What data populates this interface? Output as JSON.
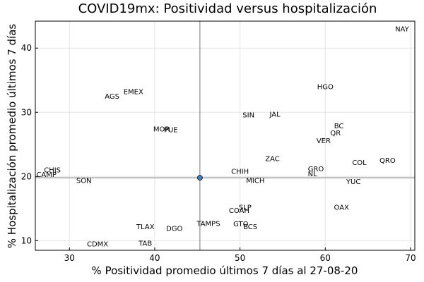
{
  "chart_data": {
    "type": "scatter",
    "title": "COVID19mx: Positividad versus hospitalización",
    "xlabel": "% Positividad promedio últimos 7 días al 27-08-20",
    "ylabel": "% Hospitalización promedio últimos 7 días",
    "xlim": [
      26.0,
      70.5
    ],
    "ylim": [
      8.5,
      44.2
    ],
    "xticks": [
      30,
      40,
      50,
      60,
      70
    ],
    "yticks": [
      10,
      20,
      30,
      40
    ],
    "grid": true,
    "reference_lines": {
      "x": 45.3,
      "y": 19.8
    },
    "marker": {
      "x": 45.3,
      "y": 19.8,
      "color": "#3a82c4"
    },
    "points": [
      {
        "label": "NAY",
        "x": 69.0,
        "y": 43.0
      },
      {
        "label": "HGO",
        "x": 60.0,
        "y": 34.0
      },
      {
        "label": "EMEX",
        "x": 37.5,
        "y": 33.2
      },
      {
        "label": "AGS",
        "x": 35.0,
        "y": 32.5
      },
      {
        "label": "SIN",
        "x": 51.0,
        "y": 29.6
      },
      {
        "label": "JAL",
        "x": 54.1,
        "y": 29.7
      },
      {
        "label": "BC",
        "x": 61.6,
        "y": 27.9
      },
      {
        "label": "QR",
        "x": 61.2,
        "y": 26.8
      },
      {
        "label": "MOR",
        "x": 40.8,
        "y": 27.4
      },
      {
        "label": "PUE",
        "x": 41.9,
        "y": 27.3
      },
      {
        "label": "VER",
        "x": 59.8,
        "y": 25.6
      },
      {
        "label": "ZAC",
        "x": 53.8,
        "y": 22.8
      },
      {
        "label": "QRO",
        "x": 67.3,
        "y": 22.5
      },
      {
        "label": "COL",
        "x": 64.0,
        "y": 22.2
      },
      {
        "label": "GRO",
        "x": 58.9,
        "y": 21.2
      },
      {
        "label": "CHIS",
        "x": 28.0,
        "y": 21.0
      },
      {
        "label": "CHIH",
        "x": 50.0,
        "y": 20.8
      },
      {
        "label": "CAMP",
        "x": 27.3,
        "y": 20.3
      },
      {
        "label": "NL",
        "x": 58.5,
        "y": 20.4
      },
      {
        "label": "SON",
        "x": 31.7,
        "y": 19.4
      },
      {
        "label": "MICH",
        "x": 51.8,
        "y": 19.4
      },
      {
        "label": "YUC",
        "x": 63.3,
        "y": 19.2
      },
      {
        "label": "OAX",
        "x": 61.9,
        "y": 15.2
      },
      {
        "label": "SLP",
        "x": 50.6,
        "y": 15.2
      },
      {
        "label": "COAH",
        "x": 49.9,
        "y": 14.7
      },
      {
        "label": "TAMPS",
        "x": 46.3,
        "y": 12.7
      },
      {
        "label": "GTO",
        "x": 50.1,
        "y": 12.6
      },
      {
        "label": "BCS",
        "x": 51.2,
        "y": 12.2
      },
      {
        "label": "TLAX",
        "x": 38.9,
        "y": 12.2
      },
      {
        "label": "DGO",
        "x": 42.3,
        "y": 11.9
      },
      {
        "label": "CDMX",
        "x": 33.3,
        "y": 9.5
      },
      {
        "label": "TAB",
        "x": 38.9,
        "y": 9.6
      }
    ]
  }
}
